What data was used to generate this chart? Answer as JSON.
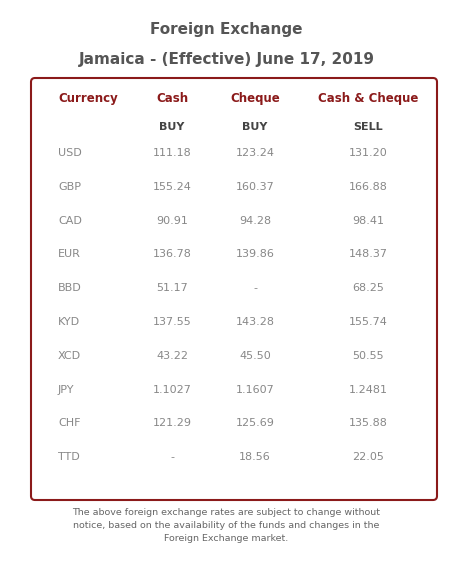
{
  "title_line1": "Foreign Exchange",
  "title_line2": "Jamaica - (Effective) June 17, 2019",
  "title_fontsize": 11,
  "bg_color": "#ffffff",
  "border_color": "#8B1A1A",
  "header_color": "#8B1A1A",
  "data_color": "#888888",
  "subheader_color": "#444444",
  "col_headers": [
    "Currency",
    "Cash",
    "Cheque",
    "Cash & Cheque"
  ],
  "col_subheaders": [
    "",
    "BUY",
    "BUY",
    "SELL"
  ],
  "rows": [
    [
      "USD",
      "111.18",
      "123.24",
      "131.20"
    ],
    [
      "GBP",
      "155.24",
      "160.37",
      "166.88"
    ],
    [
      "CAD",
      "90.91",
      "94.28",
      "98.41"
    ],
    [
      "EUR",
      "136.78",
      "139.86",
      "148.37"
    ],
    [
      "BBD",
      "51.17",
      "-",
      "68.25"
    ],
    [
      "KYD",
      "137.55",
      "143.28",
      "155.74"
    ],
    [
      "XCD",
      "43.22",
      "45.50",
      "50.55"
    ],
    [
      "JPY",
      "1.1027",
      "1.1607",
      "1.2481"
    ],
    [
      "CHF",
      "121.29",
      "125.69",
      "135.88"
    ],
    [
      "TTD",
      "-",
      "18.56",
      "22.05"
    ]
  ],
  "footnote": "The above foreign exchange rates are subject to change without\nnotice, based on the availability of the funds and changes in the\nForeign Exchange market.",
  "col_align": [
    "left",
    "center",
    "center",
    "center"
  ],
  "figsize": [
    4.53,
    5.78
  ],
  "dpi": 100
}
